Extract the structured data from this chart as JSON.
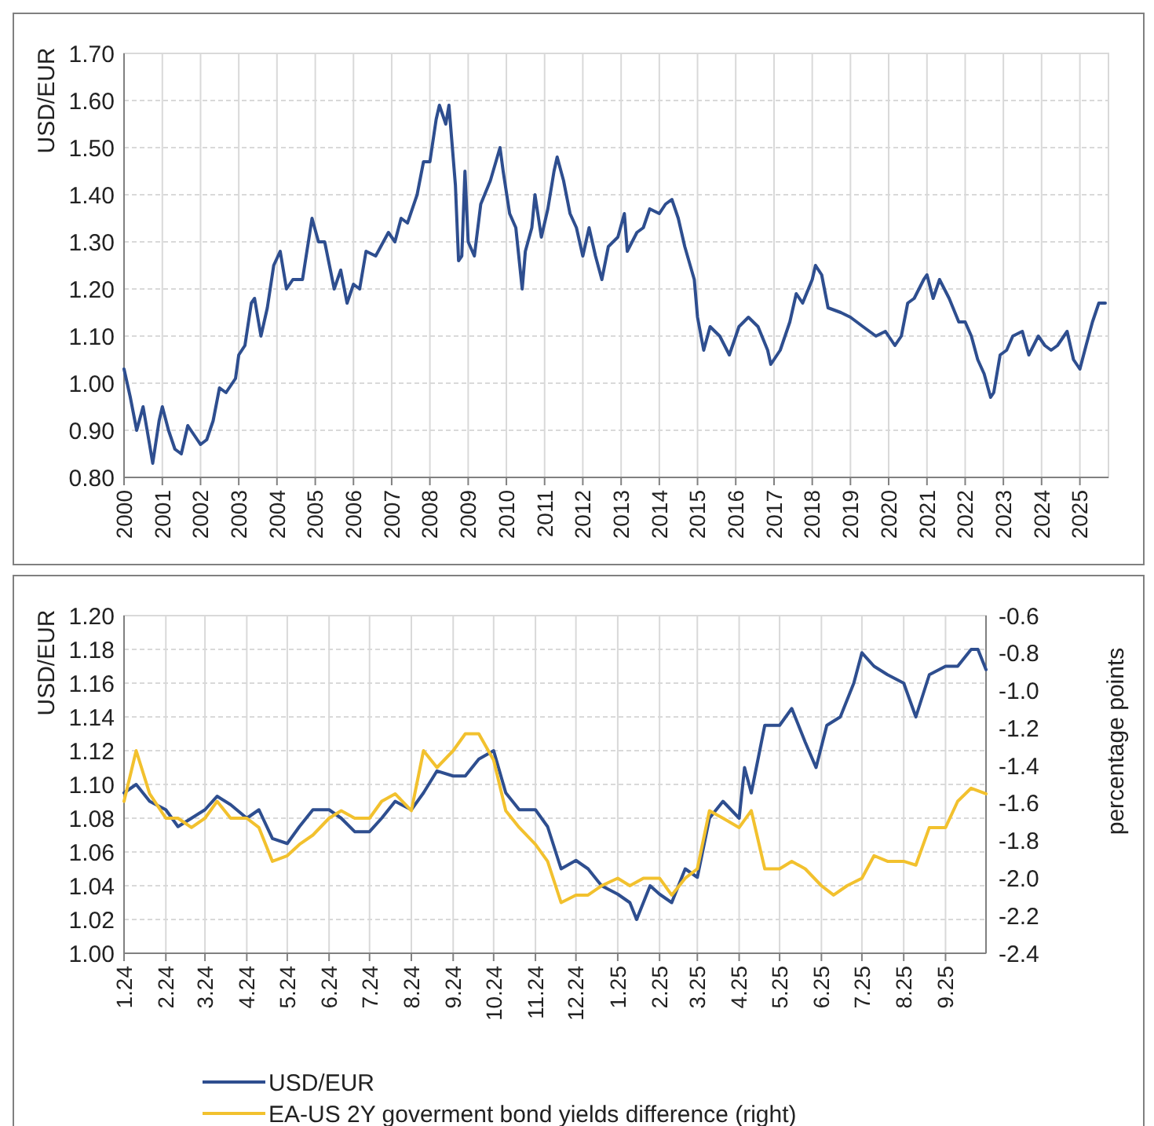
{
  "chart_data": [
    {
      "type": "line",
      "ylabel": "USD/EUR",
      "grid": true,
      "legend": false,
      "xlim": [
        "2000-01-01",
        "2025-10-01"
      ],
      "xticks": [
        "2000",
        "2001",
        "2002",
        "2003",
        "2004",
        "2005",
        "2006",
        "2007",
        "2008",
        "2009",
        "2010",
        "2011",
        "2012",
        "2013",
        "2014",
        "2015",
        "2016",
        "2017",
        "2018",
        "2019",
        "2020",
        "2021",
        "2022",
        "2023",
        "2024",
        "2025"
      ],
      "ylim": [
        0.8,
        1.7
      ],
      "yticks": [
        {
          "value": 0.8,
          "label": "0.80"
        },
        {
          "value": 0.9,
          "label": "0.90"
        },
        {
          "value": 1.0,
          "label": "1.00"
        },
        {
          "value": 1.1,
          "label": "1.10"
        },
        {
          "value": 1.2,
          "label": "1.20"
        },
        {
          "value": 1.3,
          "label": "1.30"
        },
        {
          "value": 1.4,
          "label": "1.40"
        },
        {
          "value": 1.5,
          "label": "1.50"
        },
        {
          "value": 1.6,
          "label": "1.60"
        },
        {
          "value": 1.7,
          "label": "1.70"
        }
      ],
      "x": [
        "2000-01",
        "2000-03",
        "2000-05",
        "2000-07",
        "2000-09",
        "2000-10",
        "2000-12",
        "2001-01",
        "2001-03",
        "2001-05",
        "2001-07",
        "2001-09",
        "2001-10",
        "2001-12",
        "2002-01",
        "2002-03",
        "2002-05",
        "2002-07",
        "2002-09",
        "2002-12",
        "2003-01",
        "2003-03",
        "2003-05",
        "2003-06",
        "2003-08",
        "2003-10",
        "2003-12",
        "2004-02",
        "2004-04",
        "2004-06",
        "2004-09",
        "2004-12",
        "2005-02",
        "2005-04",
        "2005-07",
        "2005-09",
        "2005-11",
        "2006-01",
        "2006-03",
        "2006-05",
        "2006-08",
        "2006-12",
        "2007-02",
        "2007-04",
        "2007-06",
        "2007-09",
        "2007-11",
        "2008-01",
        "2008-03",
        "2008-04",
        "2008-06",
        "2008-07",
        "2008-09",
        "2008-10",
        "2008-11",
        "2008-12",
        "2009-01",
        "2009-03",
        "2009-05",
        "2009-08",
        "2009-11",
        "2009-12",
        "2010-02",
        "2010-04",
        "2010-06",
        "2010-07",
        "2010-09",
        "2010-10",
        "2010-12",
        "2011-02",
        "2011-04",
        "2011-05",
        "2011-07",
        "2011-09",
        "2011-11",
        "2012-01",
        "2012-03",
        "2012-05",
        "2012-07",
        "2012-09",
        "2012-12",
        "2013-02",
        "2013-03",
        "2013-06",
        "2013-08",
        "2013-10",
        "2014-01",
        "2014-03",
        "2014-05",
        "2014-07",
        "2014-09",
        "2014-12",
        "2015-01",
        "2015-03",
        "2015-05",
        "2015-08",
        "2015-11",
        "2016-02",
        "2016-05",
        "2016-08",
        "2016-11",
        "2016-12",
        "2017-03",
        "2017-06",
        "2017-08",
        "2017-10",
        "2018-01",
        "2018-02",
        "2018-04",
        "2018-06",
        "2018-10",
        "2019-01",
        "2019-05",
        "2019-09",
        "2019-12",
        "2020-03",
        "2020-05",
        "2020-07",
        "2020-09",
        "2020-12",
        "2021-01",
        "2021-03",
        "2021-05",
        "2021-08",
        "2021-11",
        "2022-01",
        "2022-03",
        "2022-05",
        "2022-07",
        "2022-09",
        "2022-10",
        "2022-12",
        "2023-02",
        "2023-04",
        "2023-07",
        "2023-09",
        "2023-12",
        "2024-02",
        "2024-04",
        "2024-06",
        "2024-09",
        "2024-11",
        "2025-01",
        "2025-03",
        "2025-05",
        "2025-07",
        "2025-09"
      ],
      "series": [
        {
          "color": "#2e4e8f",
          "values": [
            1.03,
            0.97,
            0.9,
            0.95,
            0.87,
            0.83,
            0.92,
            0.95,
            0.9,
            0.86,
            0.85,
            0.91,
            0.9,
            0.88,
            0.87,
            0.88,
            0.92,
            0.99,
            0.98,
            1.01,
            1.06,
            1.08,
            1.17,
            1.18,
            1.1,
            1.16,
            1.25,
            1.28,
            1.2,
            1.22,
            1.22,
            1.35,
            1.3,
            1.3,
            1.2,
            1.24,
            1.17,
            1.21,
            1.2,
            1.28,
            1.27,
            1.32,
            1.3,
            1.35,
            1.34,
            1.4,
            1.47,
            1.47,
            1.56,
            1.59,
            1.55,
            1.59,
            1.42,
            1.26,
            1.27,
            1.45,
            1.3,
            1.27,
            1.38,
            1.43,
            1.5,
            1.45,
            1.36,
            1.33,
            1.2,
            1.28,
            1.33,
            1.4,
            1.31,
            1.37,
            1.45,
            1.48,
            1.43,
            1.36,
            1.33,
            1.27,
            1.33,
            1.27,
            1.22,
            1.29,
            1.31,
            1.36,
            1.28,
            1.32,
            1.33,
            1.37,
            1.36,
            1.38,
            1.39,
            1.35,
            1.29,
            1.22,
            1.14,
            1.07,
            1.12,
            1.1,
            1.06,
            1.12,
            1.14,
            1.12,
            1.07,
            1.04,
            1.07,
            1.13,
            1.19,
            1.17,
            1.22,
            1.25,
            1.23,
            1.16,
            1.15,
            1.14,
            1.12,
            1.1,
            1.11,
            1.08,
            1.1,
            1.17,
            1.18,
            1.22,
            1.23,
            1.18,
            1.22,
            1.18,
            1.13,
            1.13,
            1.1,
            1.05,
            1.02,
            0.97,
            0.98,
            1.06,
            1.07,
            1.1,
            1.11,
            1.06,
            1.1,
            1.08,
            1.07,
            1.08,
            1.11,
            1.05,
            1.03,
            1.08,
            1.13,
            1.17,
            1.17
          ]
        }
      ]
    },
    {
      "type": "line",
      "ylabel": "USD/EUR",
      "y2label": "percentage points",
      "grid": true,
      "legend": "bottom",
      "xlim": [
        "2024-01-01",
        "2025-10-01"
      ],
      "xticks": [
        {
          "value": "2024-01",
          "label": "1.24"
        },
        {
          "value": "2024-02",
          "label": "2.24"
        },
        {
          "value": "2024-03",
          "label": "3.24"
        },
        {
          "value": "2024-04",
          "label": "4.24"
        },
        {
          "value": "2024-05",
          "label": "5.24"
        },
        {
          "value": "2024-06",
          "label": "6.24"
        },
        {
          "value": "2024-07",
          "label": "7.24"
        },
        {
          "value": "2024-08",
          "label": "8.24"
        },
        {
          "value": "2024-09",
          "label": "9.24"
        },
        {
          "value": "2024-10",
          "label": "10.24"
        },
        {
          "value": "2024-11",
          "label": "11.24"
        },
        {
          "value": "2024-12",
          "label": "12.24"
        },
        {
          "value": "2025-01",
          "label": "1.25"
        },
        {
          "value": "2025-02",
          "label": "2.25"
        },
        {
          "value": "2025-03",
          "label": "3.25"
        },
        {
          "value": "2025-04",
          "label": "4.25"
        },
        {
          "value": "2025-05",
          "label": "5.25"
        },
        {
          "value": "2025-06",
          "label": "6.25"
        },
        {
          "value": "2025-07",
          "label": "7.25"
        },
        {
          "value": "2025-08",
          "label": "8.25"
        },
        {
          "value": "2025-09",
          "label": "9.25"
        }
      ],
      "ylim": [
        1.0,
        1.2
      ],
      "yticks": [
        {
          "value": 1.0,
          "label": "1.00"
        },
        {
          "value": 1.02,
          "label": "1.02"
        },
        {
          "value": 1.04,
          "label": "1.04"
        },
        {
          "value": 1.06,
          "label": "1.06"
        },
        {
          "value": 1.08,
          "label": "1.08"
        },
        {
          "value": 1.1,
          "label": "1.10"
        },
        {
          "value": 1.12,
          "label": "1.12"
        },
        {
          "value": 1.14,
          "label": "1.14"
        },
        {
          "value": 1.16,
          "label": "1.16"
        },
        {
          "value": 1.18,
          "label": "1.18"
        },
        {
          "value": 1.2,
          "label": "1.20"
        }
      ],
      "y2lim": [
        -2.4,
        -0.6
      ],
      "y2ticks": [
        {
          "value": -2.4,
          "label": "-2.4"
        },
        {
          "value": -2.2,
          "label": "-2.2"
        },
        {
          "value": -2.0,
          "label": "-2.0"
        },
        {
          "value": -1.8,
          "label": "-1.8"
        },
        {
          "value": -1.6,
          "label": "-1.6"
        },
        {
          "value": -1.4,
          "label": "-1.4"
        },
        {
          "value": -1.2,
          "label": "-1.2"
        },
        {
          "value": -1.0,
          "label": "-1.0"
        },
        {
          "value": -0.8,
          "label": "-0.8"
        },
        {
          "value": -0.6,
          "label": "-0.6"
        }
      ],
      "series": [
        {
          "name": "USD/EUR",
          "color": "#2e4e8f",
          "x": [
            "2024-01-01",
            "2024-01-10",
            "2024-01-20",
            "2024-02-01",
            "2024-02-10",
            "2024-02-20",
            "2024-03-01",
            "2024-03-10",
            "2024-03-20",
            "2024-04-01",
            "2024-04-10",
            "2024-04-20",
            "2024-05-01",
            "2024-05-10",
            "2024-05-20",
            "2024-06-01",
            "2024-06-10",
            "2024-06-20",
            "2024-07-01",
            "2024-07-10",
            "2024-07-20",
            "2024-08-01",
            "2024-08-10",
            "2024-08-20",
            "2024-09-01",
            "2024-09-10",
            "2024-09-20",
            "2024-10-01",
            "2024-10-10",
            "2024-10-20",
            "2024-11-01",
            "2024-11-10",
            "2024-11-20",
            "2024-12-01",
            "2024-12-10",
            "2024-12-20",
            "2025-01-01",
            "2025-01-10",
            "2025-01-15",
            "2025-01-25",
            "2025-02-01",
            "2025-02-10",
            "2025-02-20",
            "2025-03-01",
            "2025-03-10",
            "2025-03-20",
            "2025-04-01",
            "2025-04-05",
            "2025-04-10",
            "2025-04-20",
            "2025-05-01",
            "2025-05-10",
            "2025-05-20",
            "2025-05-28",
            "2025-06-05",
            "2025-06-15",
            "2025-06-25",
            "2025-07-01",
            "2025-07-10",
            "2025-07-20",
            "2025-08-01",
            "2025-08-10",
            "2025-08-20",
            "2025-09-01",
            "2025-09-10",
            "2025-09-20",
            "2025-09-25",
            "2025-10-01"
          ],
          "values": [
            1.095,
            1.1,
            1.09,
            1.085,
            1.075,
            1.08,
            1.085,
            1.093,
            1.088,
            1.08,
            1.085,
            1.068,
            1.065,
            1.075,
            1.085,
            1.085,
            1.08,
            1.072,
            1.072,
            1.08,
            1.09,
            1.085,
            1.095,
            1.108,
            1.105,
            1.105,
            1.115,
            1.12,
            1.095,
            1.085,
            1.085,
            1.075,
            1.05,
            1.055,
            1.05,
            1.04,
            1.035,
            1.03,
            1.02,
            1.04,
            1.035,
            1.03,
            1.05,
            1.045,
            1.08,
            1.09,
            1.08,
            1.11,
            1.095,
            1.135,
            1.135,
            1.145,
            1.125,
            1.11,
            1.135,
            1.14,
            1.16,
            1.178,
            1.17,
            1.165,
            1.16,
            1.14,
            1.165,
            1.17,
            1.17,
            1.18,
            1.18,
            1.168
          ]
        },
        {
          "name": "EA-US 2Y goverment bond yields difference (right)",
          "color": "#f2c12e",
          "axis": "y2",
          "x": [
            "2024-01-01",
            "2024-01-10",
            "2024-01-20",
            "2024-02-01",
            "2024-02-10",
            "2024-02-20",
            "2024-03-01",
            "2024-03-10",
            "2024-03-20",
            "2024-04-01",
            "2024-04-10",
            "2024-04-20",
            "2024-05-01",
            "2024-05-10",
            "2024-05-20",
            "2024-06-01",
            "2024-06-10",
            "2024-06-20",
            "2024-07-01",
            "2024-07-10",
            "2024-07-20",
            "2024-08-01",
            "2024-08-10",
            "2024-08-20",
            "2024-09-01",
            "2024-09-10",
            "2024-09-20",
            "2024-10-01",
            "2024-10-10",
            "2024-10-20",
            "2024-11-01",
            "2024-11-10",
            "2024-11-20",
            "2024-12-01",
            "2024-12-10",
            "2024-12-20",
            "2025-01-01",
            "2025-01-10",
            "2025-01-20",
            "2025-02-01",
            "2025-02-10",
            "2025-02-20",
            "2025-03-01",
            "2025-03-10",
            "2025-03-20",
            "2025-04-01",
            "2025-04-10",
            "2025-04-20",
            "2025-05-01",
            "2025-05-10",
            "2025-05-20",
            "2025-06-01",
            "2025-06-10",
            "2025-06-20",
            "2025-07-01",
            "2025-07-10",
            "2025-07-20",
            "2025-08-01",
            "2025-08-10",
            "2025-08-20",
            "2025-09-01",
            "2025-09-10",
            "2025-09-20",
            "2025-10-01"
          ],
          "values": [
            -1.59,
            -1.32,
            -1.55,
            -1.68,
            -1.68,
            -1.73,
            -1.68,
            -1.59,
            -1.68,
            -1.68,
            -1.73,
            -1.91,
            -1.88,
            -1.82,
            -1.77,
            -1.68,
            -1.64,
            -1.68,
            -1.68,
            -1.59,
            -1.55,
            -1.64,
            -1.32,
            -1.41,
            -1.32,
            -1.23,
            -1.23,
            -1.37,
            -1.64,
            -1.73,
            -1.82,
            -1.91,
            -2.13,
            -2.09,
            -2.09,
            -2.04,
            -2.0,
            -2.04,
            -2.0,
            -2.0,
            -2.09,
            -2.0,
            -1.95,
            -1.64,
            -1.68,
            -1.73,
            -1.64,
            -1.95,
            -1.95,
            -1.91,
            -1.95,
            -2.04,
            -2.09,
            -2.04,
            -2.0,
            -1.88,
            -1.91,
            -1.91,
            -1.93,
            -1.73,
            -1.73,
            -1.59,
            -1.52,
            -1.55
          ]
        }
      ]
    }
  ]
}
